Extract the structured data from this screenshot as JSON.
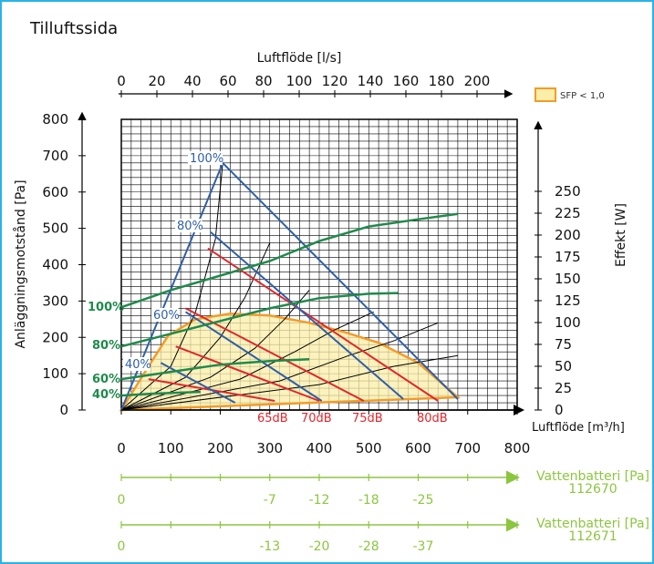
{
  "chart_data": {
    "type": "line",
    "title": "Tilluftssida",
    "colors": {
      "frame": "#29b3e6",
      "fan_pressure": "#2e5fa8",
      "fan_power": "#1f8a4c",
      "sound": "#e3262b",
      "sfp": "#f49b26",
      "sfp_fill": "#fbeea8",
      "water": "#8cc63f",
      "system": "#000000"
    },
    "x_bottom": {
      "label": "Luftflöde [m³/h]",
      "range": [
        0,
        800
      ],
      "ticks": [
        "0",
        "100",
        "200",
        "300",
        "400",
        "500",
        "600",
        "700",
        "800"
      ]
    },
    "x_top": {
      "label": "Luftflöde [l/s]",
      "ticks": [
        "0",
        "20",
        "40",
        "60",
        "80",
        "100",
        "120",
        "140",
        "160",
        "180",
        "200"
      ]
    },
    "y_left": {
      "label": "Anläggningsmotstånd [Pa]",
      "range": [
        0,
        800
      ],
      "ticks": [
        "0",
        "100",
        "200",
        "300",
        "400",
        "500",
        "600",
        "700",
        "800"
      ]
    },
    "y_right": {
      "label": "Effekt [W]",
      "ticks": [
        "0",
        "25",
        "50",
        "75",
        "100",
        "125",
        "150",
        "175",
        "200",
        "225",
        "250"
      ]
    },
    "legend": {
      "label": "SFP < 1,0",
      "placement": "top-right"
    },
    "grid": true,
    "fan_pressure_curves": [
      {
        "label": "100%",
        "points": [
          [
            0,
            0
          ],
          [
            205,
            680
          ],
          [
            680,
            30
          ]
        ]
      },
      {
        "label": "80%",
        "points": [
          [
            180,
            490
          ],
          [
            570,
            30
          ]
        ]
      },
      {
        "label": "60%",
        "points": [
          [
            130,
            270
          ],
          [
            405,
            25
          ]
        ]
      },
      {
        "label": "40%",
        "points": [
          [
            80,
            130
          ],
          [
            230,
            20
          ]
        ]
      }
    ],
    "fan_power_curves": [
      {
        "label": "100%",
        "points": [
          [
            0,
            283
          ],
          [
            100,
            330
          ],
          [
            200,
            370
          ],
          [
            300,
            410
          ],
          [
            400,
            465
          ],
          [
            500,
            505
          ],
          [
            600,
            525
          ],
          [
            680,
            540
          ]
        ]
      },
      {
        "label": "80%",
        "points": [
          [
            0,
            175
          ],
          [
            100,
            210
          ],
          [
            200,
            245
          ],
          [
            300,
            280
          ],
          [
            400,
            308
          ],
          [
            500,
            320
          ],
          [
            560,
            322
          ]
        ]
      },
      {
        "label": "60%",
        "points": [
          [
            0,
            85
          ],
          [
            100,
            105
          ],
          [
            200,
            125
          ],
          [
            300,
            135
          ],
          [
            380,
            140
          ]
        ]
      },
      {
        "label": "40%",
        "points": [
          [
            0,
            40
          ],
          [
            60,
            45
          ],
          [
            120,
            48
          ],
          [
            160,
            50
          ]
        ]
      }
    ],
    "sound_lines": [
      {
        "label": "65dB",
        "points": [
          [
            55,
            85
          ],
          [
            310,
            25
          ]
        ]
      },
      {
        "label": "70dB",
        "points": [
          [
            110,
            175
          ],
          [
            400,
            25
          ]
        ]
      },
      {
        "label": "75dB",
        "points": [
          [
            130,
            280
          ],
          [
            490,
            25
          ]
        ]
      },
      {
        "label": "80dB",
        "points": [
          [
            175,
            445
          ],
          [
            640,
            25
          ]
        ]
      }
    ],
    "system_curves": [
      {
        "points": [
          [
            0,
            0
          ],
          [
            100,
            120
          ],
          [
            150,
            270
          ],
          [
            190,
            470
          ],
          [
            205,
            680
          ]
        ]
      },
      {
        "points": [
          [
            0,
            0
          ],
          [
            130,
            90
          ],
          [
            200,
            200
          ],
          [
            250,
            310
          ],
          [
            300,
            460
          ]
        ]
      },
      {
        "points": [
          [
            0,
            0
          ],
          [
            180,
            90
          ],
          [
            270,
            170
          ],
          [
            330,
            250
          ],
          [
            380,
            330
          ]
        ]
      },
      {
        "points": [
          [
            0,
            0
          ],
          [
            240,
            85
          ],
          [
            350,
            160
          ],
          [
            430,
            220
          ],
          [
            510,
            270
          ]
        ]
      },
      {
        "points": [
          [
            0,
            0
          ],
          [
            320,
            80
          ],
          [
            460,
            150
          ],
          [
            550,
            190
          ],
          [
            640,
            240
          ]
        ]
      },
      {
        "points": [
          [
            0,
            0
          ],
          [
            400,
            70
          ],
          [
            550,
            120
          ],
          [
            680,
            150
          ]
        ]
      }
    ],
    "sfp_region": [
      [
        0,
        0
      ],
      [
        55,
        120
      ],
      [
        95,
        205
      ],
      [
        150,
        250
      ],
      [
        220,
        265
      ],
      [
        300,
        260
      ],
      [
        380,
        240
      ],
      [
        450,
        215
      ],
      [
        520,
        185
      ],
      [
        600,
        130
      ],
      [
        680,
        35
      ],
      [
        0,
        0
      ]
    ],
    "water_batteries": [
      {
        "label": "Vattenbatteri [Pa]",
        "model": "112670",
        "labels": [
          "0",
          "-7",
          "-12",
          "-18",
          "-25"
        ],
        "x": [
          0,
          300,
          400,
          500,
          610
        ]
      },
      {
        "label": "Vattenbatteri [Pa]",
        "model": "112671",
        "labels": [
          "0",
          "-13",
          "-20",
          "-28",
          "-37"
        ],
        "x": [
          0,
          300,
          400,
          500,
          610
        ]
      }
    ]
  }
}
